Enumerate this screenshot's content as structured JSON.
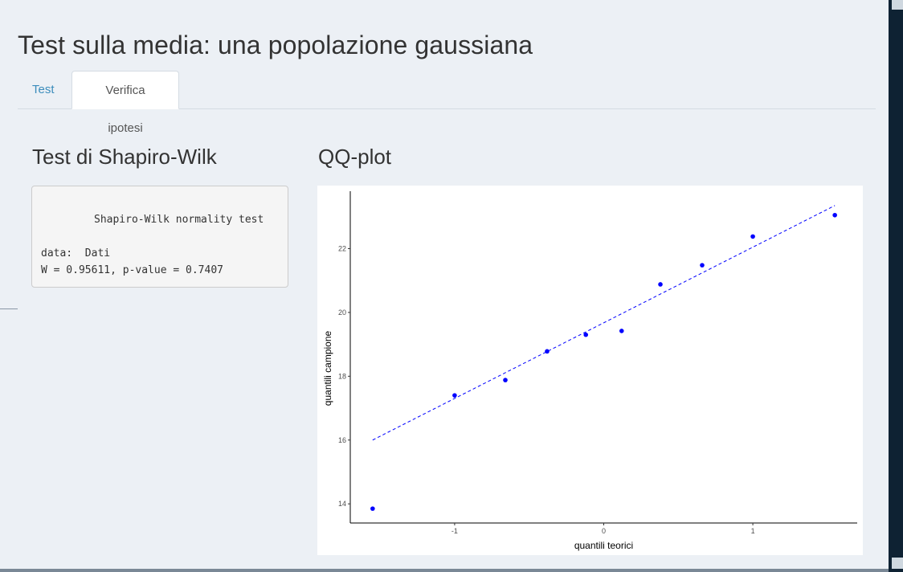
{
  "page": {
    "title": "Test sulla media: una popolazione gaussiana"
  },
  "tabs": [
    {
      "label": "Test",
      "active": false
    },
    {
      "label": "Verifica ipotesi",
      "active": true
    }
  ],
  "shapiro": {
    "title": "Test di Shapiro-Wilk",
    "output_lines": [
      "Shapiro-Wilk normality test",
      "data:  Dati",
      "W = 0.95611, p-value = 0.7407"
    ]
  },
  "qqplot": {
    "title": "QQ-plot"
  },
  "colors": {
    "accent": "#3c8dbc",
    "points": "#0000ff",
    "background": "#ecf0f5"
  },
  "chart_data": {
    "type": "scatter",
    "xlabel": "quantili teorici",
    "ylabel": "quantili campione",
    "x_ticks": [
      -1,
      0,
      1
    ],
    "y_ticks": [
      14,
      16,
      18,
      20,
      22
    ],
    "xlim": [
      -1.7,
      1.7
    ],
    "ylim": [
      13.4,
      23.8
    ],
    "points": [
      {
        "x": -1.55,
        "y": 13.85
      },
      {
        "x": -1.0,
        "y": 17.4
      },
      {
        "x": -0.66,
        "y": 17.88
      },
      {
        "x": -0.38,
        "y": 18.78
      },
      {
        "x": -0.12,
        "y": 19.3
      },
      {
        "x": 0.12,
        "y": 19.42
      },
      {
        "x": 0.38,
        "y": 20.88
      },
      {
        "x": 0.66,
        "y": 21.48
      },
      {
        "x": 1.0,
        "y": 22.38
      },
      {
        "x": 1.55,
        "y": 23.05
      }
    ],
    "reference_line": {
      "x_start": -1.55,
      "y_start": 16.0,
      "x_end": 1.55,
      "y_end": 23.35,
      "style": "dashed"
    }
  }
}
